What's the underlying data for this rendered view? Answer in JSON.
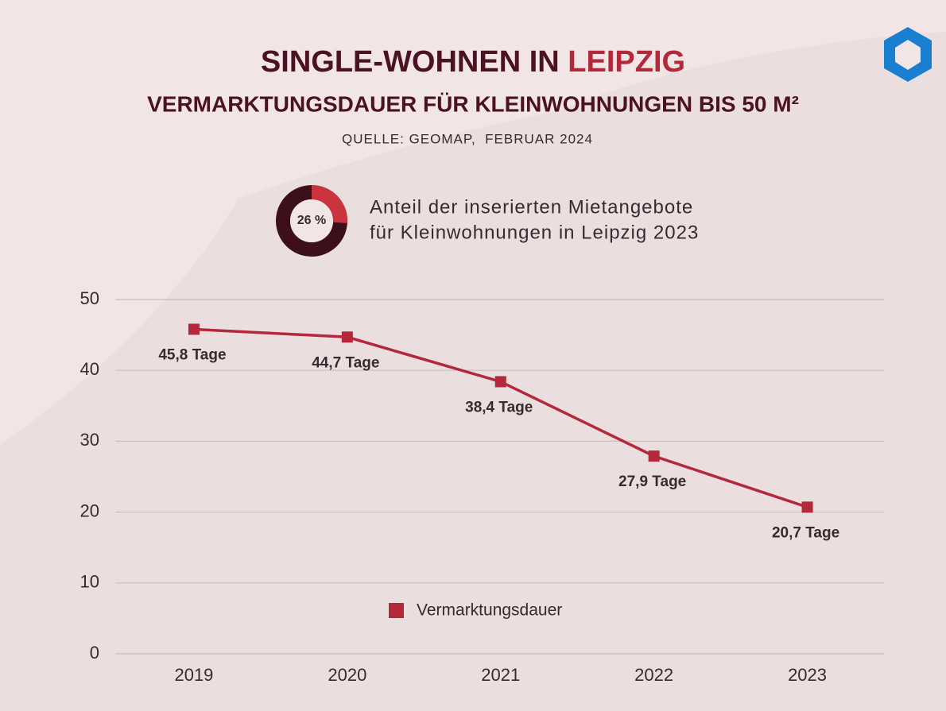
{
  "chart_data": [
    {
      "type": "line",
      "title": "SINGLE-WOHNEN IN",
      "title_highlight": "LEIPZIG",
      "subtitle": "VERMARKTUNGSDAUER FÜR KLEINWOHNUNGEN BIS 50 M²",
      "source": "QUELLE: GEOMAP,  FEBRUAR 2024",
      "categories": [
        "2019",
        "2020",
        "2021",
        "2022",
        "2023"
      ],
      "series": [
        {
          "name": "Vermarktungsdauer",
          "color": "#b3283a",
          "values": [
            45.8,
            44.7,
            38.4,
            27.9,
            20.7
          ],
          "value_labels": [
            "45,8 Tage",
            "44,7 Tage",
            "38,4 Tage",
            "27,9 Tage",
            "20,7 Tage"
          ]
        }
      ],
      "ylim": [
        0,
        50
      ],
      "yticks": [
        0,
        10,
        20,
        30,
        40,
        50
      ],
      "grid": true,
      "legend": "bottom"
    },
    {
      "type": "pie",
      "values": [
        26
      ],
      "value_labels": [
        "26 %"
      ],
      "color": "#c9343f",
      "annotation": [
        "Anteil der inserierten Mietangebote",
        "für Kleinwohnungen in Leipzig 2023"
      ]
    }
  ]
}
